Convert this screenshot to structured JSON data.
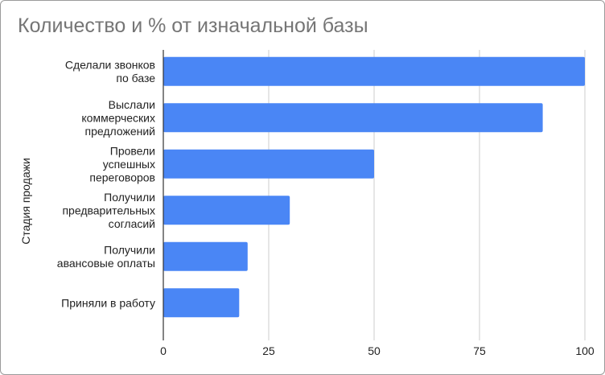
{
  "chart_data": {
    "type": "bar",
    "orientation": "horizontal",
    "title": "Количество и % от изначальной базы",
    "xlabel": "",
    "ylabel": "Стадия продажи",
    "categories": [
      [
        "Сделали звонков",
        "по базе"
      ],
      [
        "Выслали",
        "коммерческих",
        "предложений"
      ],
      [
        "Провели",
        "успешных",
        "переговоров"
      ],
      [
        "Получили",
        "предварительных",
        "согласий"
      ],
      [
        "Получили",
        "авансовые оплаты"
      ],
      [
        "Приняли в работу"
      ]
    ],
    "values": [
      100,
      90,
      50,
      30,
      20,
      18
    ],
    "xlim": [
      0,
      100
    ],
    "xticks": [
      "0",
      "25",
      "50",
      "75",
      "100"
    ],
    "grid": true,
    "legend": "none",
    "colors": {
      "bar": "#4a86f5",
      "grid": "#cccccc",
      "axis": "#333333"
    }
  }
}
